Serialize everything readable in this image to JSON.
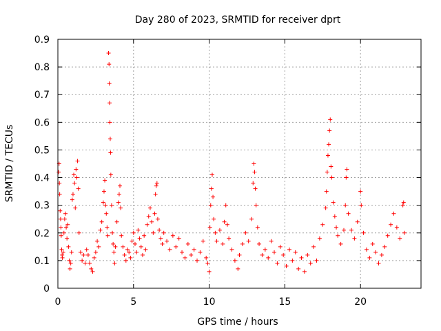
{
  "chart_data": {
    "type": "scatter",
    "title": "Day 280 of 2023, SRMTID for receiver dprt",
    "xlabel": "GPS time / hours",
    "ylabel": "SRMTID / TECUs",
    "xlim": [
      0,
      24
    ],
    "ylim": [
      0,
      0.9
    ],
    "xticks": [
      0,
      5,
      10,
      15,
      20
    ],
    "xtick_labels": [
      "0",
      "5",
      "10",
      "15",
      "20"
    ],
    "yticks": [
      0,
      0.1,
      0.2,
      0.3,
      0.4,
      0.5,
      0.6,
      0.7,
      0.8,
      0.9
    ],
    "ytick_labels": [
      "0",
      "0.1",
      "0.2",
      "0.3",
      "0.4",
      "0.5",
      "0.6",
      "0.7",
      "0.8",
      "0.9"
    ],
    "grid": true,
    "marker": "+",
    "color": "#ff0000",
    "series": [
      {
        "name": "SRMTID",
        "points": [
          [
            0.05,
            0.42
          ],
          [
            0.08,
            0.45
          ],
          [
            0.1,
            0.38
          ],
          [
            0.12,
            0.34
          ],
          [
            0.15,
            0.28
          ],
          [
            0.18,
            0.25
          ],
          [
            0.2,
            0.22
          ],
          [
            0.22,
            0.19
          ],
          [
            0.25,
            0.14
          ],
          [
            0.28,
            0.12
          ],
          [
            0.3,
            0.11
          ],
          [
            0.35,
            0.13
          ],
          [
            0.4,
            0.2
          ],
          [
            0.45,
            0.25
          ],
          [
            0.5,
            0.27
          ],
          [
            0.55,
            0.22
          ],
          [
            0.6,
            0.18
          ],
          [
            0.65,
            0.23
          ],
          [
            0.7,
            0.15
          ],
          [
            0.75,
            0.1
          ],
          [
            0.8,
            0.07
          ],
          [
            0.85,
            0.09
          ],
          [
            0.9,
            0.13
          ],
          [
            0.95,
            0.32
          ],
          [
            1.0,
            0.34
          ],
          [
            1.05,
            0.41
          ],
          [
            1.1,
            0.38
          ],
          [
            1.15,
            0.29
          ],
          [
            1.2,
            0.43
          ],
          [
            1.25,
            0.4
          ],
          [
            1.3,
            0.46
          ],
          [
            1.35,
            0.36
          ],
          [
            1.4,
            0.2
          ],
          [
            1.5,
            0.13
          ],
          [
            1.6,
            0.1
          ],
          [
            1.7,
            0.12
          ],
          [
            1.8,
            0.09
          ],
          [
            1.9,
            0.14
          ],
          [
            2.0,
            0.12
          ],
          [
            2.1,
            0.09
          ],
          [
            2.2,
            0.07
          ],
          [
            2.3,
            0.06
          ],
          [
            2.4,
            0.11
          ],
          [
            2.5,
            0.13
          ],
          [
            2.6,
            0.17
          ],
          [
            2.7,
            0.15
          ],
          [
            2.8,
            0.21
          ],
          [
            2.9,
            0.24
          ],
          [
            3.0,
            0.31
          ],
          [
            3.05,
            0.35
          ],
          [
            3.1,
            0.39
          ],
          [
            3.15,
            0.3
          ],
          [
            3.2,
            0.27
          ],
          [
            3.25,
            0.22
          ],
          [
            3.3,
            0.19
          ],
          [
            3.35,
            0.85
          ],
          [
            3.38,
            0.81
          ],
          [
            3.4,
            0.74
          ],
          [
            3.42,
            0.67
          ],
          [
            3.44,
            0.6
          ],
          [
            3.46,
            0.54
          ],
          [
            3.48,
            0.49
          ],
          [
            3.5,
            0.41
          ],
          [
            3.55,
            0.3
          ],
          [
            3.6,
            0.2
          ],
          [
            3.65,
            0.16
          ],
          [
            3.7,
            0.13
          ],
          [
            3.75,
            0.09
          ],
          [
            3.8,
            0.15
          ],
          [
            3.9,
            0.24
          ],
          [
            4.0,
            0.31
          ],
          [
            4.05,
            0.34
          ],
          [
            4.1,
            0.37
          ],
          [
            4.15,
            0.29
          ],
          [
            4.2,
            0.19
          ],
          [
            4.3,
            0.15
          ],
          [
            4.4,
            0.12
          ],
          [
            4.5,
            0.1
          ],
          [
            4.6,
            0.14
          ],
          [
            4.7,
            0.13
          ],
          [
            4.8,
            0.11
          ],
          [
            4.9,
            0.17
          ],
          [
            5.0,
            0.2
          ],
          [
            5.1,
            0.16
          ],
          [
            5.2,
            0.13
          ],
          [
            5.3,
            0.21
          ],
          [
            5.4,
            0.18
          ],
          [
            5.5,
            0.15
          ],
          [
            5.6,
            0.12
          ],
          [
            5.7,
            0.19
          ],
          [
            5.8,
            0.14
          ],
          [
            5.9,
            0.23
          ],
          [
            6.0,
            0.26
          ],
          [
            6.1,
            0.29
          ],
          [
            6.2,
            0.24
          ],
          [
            6.3,
            0.2
          ],
          [
            6.4,
            0.27
          ],
          [
            6.45,
            0.34
          ],
          [
            6.5,
            0.37
          ],
          [
            6.55,
            0.38
          ],
          [
            6.6,
            0.25
          ],
          [
            6.7,
            0.21
          ],
          [
            6.8,
            0.18
          ],
          [
            6.9,
            0.16
          ],
          [
            7.0,
            0.2
          ],
          [
            7.2,
            0.17
          ],
          [
            7.4,
            0.14
          ],
          [
            7.6,
            0.19
          ],
          [
            7.8,
            0.15
          ],
          [
            8.0,
            0.18
          ],
          [
            8.2,
            0.13
          ],
          [
            8.4,
            0.11
          ],
          [
            8.6,
            0.16
          ],
          [
            8.8,
            0.12
          ],
          [
            9.0,
            0.14
          ],
          [
            9.2,
            0.1
          ],
          [
            9.4,
            0.13
          ],
          [
            9.6,
            0.17
          ],
          [
            9.8,
            0.11
          ],
          [
            9.9,
            0.09
          ],
          [
            10.0,
            0.06
          ],
          [
            10.05,
            0.22
          ],
          [
            10.1,
            0.3
          ],
          [
            10.15,
            0.36
          ],
          [
            10.2,
            0.41
          ],
          [
            10.25,
            0.33
          ],
          [
            10.3,
            0.25
          ],
          [
            10.4,
            0.2
          ],
          [
            10.5,
            0.17
          ],
          [
            10.7,
            0.21
          ],
          [
            10.9,
            0.16
          ],
          [
            11.0,
            0.24
          ],
          [
            11.1,
            0.3
          ],
          [
            11.2,
            0.23
          ],
          [
            11.3,
            0.18
          ],
          [
            11.5,
            0.14
          ],
          [
            11.7,
            0.1
          ],
          [
            11.9,
            0.07
          ],
          [
            12.0,
            0.12
          ],
          [
            12.2,
            0.16
          ],
          [
            12.4,
            0.2
          ],
          [
            12.6,
            0.17
          ],
          [
            12.8,
            0.25
          ],
          [
            12.9,
            0.38
          ],
          [
            12.95,
            0.45
          ],
          [
            13.0,
            0.42
          ],
          [
            13.05,
            0.36
          ],
          [
            13.1,
            0.3
          ],
          [
            13.2,
            0.22
          ],
          [
            13.3,
            0.16
          ],
          [
            13.5,
            0.12
          ],
          [
            13.7,
            0.14
          ],
          [
            13.9,
            0.11
          ],
          [
            14.1,
            0.17
          ],
          [
            14.3,
            0.13
          ],
          [
            14.5,
            0.09
          ],
          [
            14.7,
            0.15
          ],
          [
            14.9,
            0.12
          ],
          [
            15.1,
            0.08
          ],
          [
            15.3,
            0.14
          ],
          [
            15.5,
            0.1
          ],
          [
            15.7,
            0.13
          ],
          [
            15.9,
            0.07
          ],
          [
            16.1,
            0.11
          ],
          [
            16.3,
            0.06
          ],
          [
            16.5,
            0.12
          ],
          [
            16.7,
            0.09
          ],
          [
            16.9,
            0.15
          ],
          [
            17.1,
            0.1
          ],
          [
            17.3,
            0.18
          ],
          [
            17.5,
            0.23
          ],
          [
            17.7,
            0.29
          ],
          [
            17.75,
            0.35
          ],
          [
            17.8,
            0.42
          ],
          [
            17.85,
            0.48
          ],
          [
            17.9,
            0.52
          ],
          [
            17.95,
            0.57
          ],
          [
            18.0,
            0.61
          ],
          [
            18.05,
            0.44
          ],
          [
            18.1,
            0.4
          ],
          [
            18.2,
            0.31
          ],
          [
            18.3,
            0.26
          ],
          [
            18.4,
            0.22
          ],
          [
            18.5,
            0.19
          ],
          [
            18.7,
            0.16
          ],
          [
            18.9,
            0.21
          ],
          [
            19.0,
            0.3
          ],
          [
            19.05,
            0.4
          ],
          [
            19.1,
            0.43
          ],
          [
            19.2,
            0.27
          ],
          [
            19.4,
            0.21
          ],
          [
            19.6,
            0.18
          ],
          [
            19.8,
            0.24
          ],
          [
            20.0,
            0.35
          ],
          [
            20.05,
            0.3
          ],
          [
            20.2,
            0.2
          ],
          [
            20.4,
            0.14
          ],
          [
            20.6,
            0.11
          ],
          [
            20.8,
            0.16
          ],
          [
            21.0,
            0.13
          ],
          [
            21.2,
            0.09
          ],
          [
            21.4,
            0.12
          ],
          [
            21.6,
            0.15
          ],
          [
            21.8,
            0.19
          ],
          [
            22.0,
            0.23
          ],
          [
            22.2,
            0.27
          ],
          [
            22.4,
            0.22
          ],
          [
            22.6,
            0.18
          ],
          [
            22.8,
            0.3
          ],
          [
            22.85,
            0.31
          ],
          [
            22.9,
            0.2
          ]
        ]
      }
    ]
  }
}
